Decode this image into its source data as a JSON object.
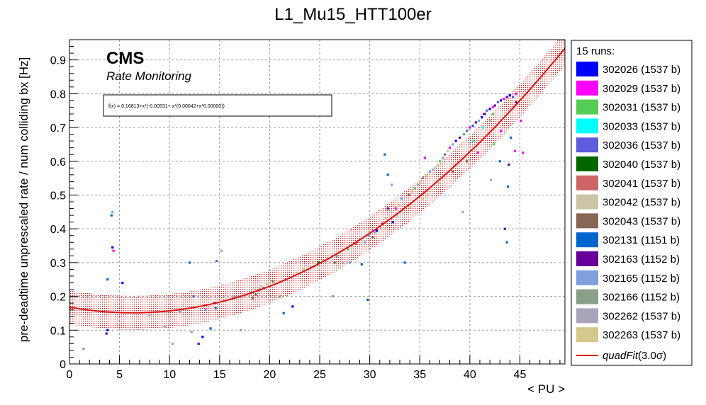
{
  "chart_data": {
    "type": "scatter",
    "title": "L1_Mu15_HTT100er",
    "xlabel": "< PU >",
    "ylabel": "pre-deadtime unprescaled rate / num colliding bx [Hz]",
    "xlim": [
      0,
      49.5
    ],
    "ylim": [
      0,
      0.96
    ],
    "x_ticks": [
      0,
      5,
      10,
      15,
      20,
      25,
      30,
      35,
      40,
      45
    ],
    "y_ticks": [
      0,
      0.1,
      0.2,
      0.3,
      0.4,
      0.5,
      0.6,
      0.7,
      0.8,
      0.9
    ],
    "grid": true,
    "experiment": "CMS",
    "subtitle": "Rate Monitoring",
    "fit_formula": "f(x) = 0.16813+x*(-0.00531+ x*(0.00042+x*0.00000))",
    "fit": {
      "name": "quadFit",
      "label_suffix": "(3.0σ)",
      "color": "#dd1111",
      "band_color": "#dd1111",
      "coefficients": [
        0.16813,
        -0.00531,
        0.00042,
        0.0
      ],
      "band_halfwidth": 0.05
    },
    "legend": {
      "header": "15 runs:",
      "position": "right",
      "entries": [
        {
          "label": "302026 (1537 b)",
          "color": "#0000ff"
        },
        {
          "label": "302029 (1537 b)",
          "color": "#ff00ff"
        },
        {
          "label": "302031 (1537 b)",
          "color": "#55cc55"
        },
        {
          "label": "302033 (1537 b)",
          "color": "#00ffff"
        },
        {
          "label": "302036 (1537 b)",
          "color": "#5c5cdc"
        },
        {
          "label": "302040 (1537 b)",
          "color": "#006600"
        },
        {
          "label": "302041 (1537 b)",
          "color": "#cc6666"
        },
        {
          "label": "302042 (1537 b)",
          "color": "#ccc4a6"
        },
        {
          "label": "302043 (1537 b)",
          "color": "#886655"
        },
        {
          "label": "302131 (1151 b)",
          "color": "#0066cc"
        },
        {
          "label": "302163 (1152 b)",
          "color": "#660099"
        },
        {
          "label": "302165 (1152 b)",
          "color": "#7f9fdd"
        },
        {
          "label": "302166 (1152 b)",
          "color": "#88a088"
        },
        {
          "label": "302262 (1537 b)",
          "color": "#aaa4bb"
        },
        {
          "label": "302263 (1537 b)",
          "color": "#d4c88a"
        }
      ],
      "fit_entry": "quadFit(3.0σ)"
    },
    "points": [
      {
        "x": 1.4,
        "y": 0.045,
        "series": 11
      },
      {
        "x": 3.7,
        "y": 0.09,
        "series": 10
      },
      {
        "x": 3.8,
        "y": 0.1,
        "series": 0
      },
      {
        "x": 3.8,
        "y": 0.25,
        "series": 9
      },
      {
        "x": 4.2,
        "y": 0.44,
        "series": 9
      },
      {
        "x": 4.3,
        "y": 0.45,
        "series": 11
      },
      {
        "x": 4.3,
        "y": 0.345,
        "series": 0
      },
      {
        "x": 4.4,
        "y": 0.335,
        "series": 1
      },
      {
        "x": 5.3,
        "y": 0.24,
        "series": 0
      },
      {
        "x": 8.0,
        "y": 0.145,
        "series": 13
      },
      {
        "x": 9.5,
        "y": 0.11,
        "series": 13
      },
      {
        "x": 10.3,
        "y": 0.06,
        "series": 13
      },
      {
        "x": 11.0,
        "y": 0.155,
        "series": 11
      },
      {
        "x": 12.0,
        "y": 0.3,
        "series": 9
      },
      {
        "x": 12.2,
        "y": 0.095,
        "series": 11
      },
      {
        "x": 12.4,
        "y": 0.2,
        "series": 4
      },
      {
        "x": 12.9,
        "y": 0.06,
        "series": 10
      },
      {
        "x": 13.3,
        "y": 0.08,
        "series": 0
      },
      {
        "x": 13.6,
        "y": 0.16,
        "series": 11
      },
      {
        "x": 14.1,
        "y": 0.105,
        "series": 9
      },
      {
        "x": 14.5,
        "y": 0.18,
        "series": 0
      },
      {
        "x": 14.6,
        "y": 0.165,
        "series": 9
      },
      {
        "x": 14.7,
        "y": 0.305,
        "series": 4
      },
      {
        "x": 15.2,
        "y": 0.335,
        "series": 13
      },
      {
        "x": 16.5,
        "y": 0.2,
        "series": 11
      },
      {
        "x": 17.1,
        "y": 0.1,
        "series": 12
      },
      {
        "x": 18.1,
        "y": 0.21,
        "series": 8
      },
      {
        "x": 18.3,
        "y": 0.195,
        "series": 8
      },
      {
        "x": 18.4,
        "y": 0.22,
        "series": 7
      },
      {
        "x": 18.6,
        "y": 0.205,
        "series": 8
      },
      {
        "x": 18.8,
        "y": 0.215,
        "series": 14
      },
      {
        "x": 19.0,
        "y": 0.22,
        "series": 8
      },
      {
        "x": 19.2,
        "y": 0.23,
        "series": 7
      },
      {
        "x": 19.4,
        "y": 0.225,
        "series": 8
      },
      {
        "x": 19.7,
        "y": 0.235,
        "series": 14
      },
      {
        "x": 20.0,
        "y": 0.24,
        "series": 7
      },
      {
        "x": 20.3,
        "y": 0.245,
        "series": 8
      },
      {
        "x": 21.0,
        "y": 0.2,
        "series": 12
      },
      {
        "x": 21.4,
        "y": 0.15,
        "series": 9
      },
      {
        "x": 22.3,
        "y": 0.17,
        "series": 0
      },
      {
        "x": 22.8,
        "y": 0.27,
        "series": 7
      },
      {
        "x": 23.4,
        "y": 0.28,
        "series": 14
      },
      {
        "x": 24.1,
        "y": 0.285,
        "series": 12
      },
      {
        "x": 24.4,
        "y": 0.29,
        "series": 2
      },
      {
        "x": 24.9,
        "y": 0.3,
        "series": 5
      },
      {
        "x": 25.3,
        "y": 0.305,
        "series": 14
      },
      {
        "x": 25.8,
        "y": 0.31,
        "series": 7
      },
      {
        "x": 26.3,
        "y": 0.2,
        "series": 12
      },
      {
        "x": 26.5,
        "y": 0.3,
        "series": 8
      },
      {
        "x": 27.0,
        "y": 0.33,
        "series": 14
      },
      {
        "x": 27.8,
        "y": 0.34,
        "series": 2
      },
      {
        "x": 28.3,
        "y": 0.35,
        "series": 14
      },
      {
        "x": 28.6,
        "y": 0.355,
        "series": 8
      },
      {
        "x": 29.2,
        "y": 0.295,
        "series": 9
      },
      {
        "x": 29.8,
        "y": 0.19,
        "series": 9
      },
      {
        "x": 29.9,
        "y": 0.38,
        "series": 11
      },
      {
        "x": 30.3,
        "y": 0.375,
        "series": 8
      },
      {
        "x": 30.5,
        "y": 0.39,
        "series": 11
      },
      {
        "x": 30.7,
        "y": 0.395,
        "series": 0
      },
      {
        "x": 31.0,
        "y": 0.405,
        "series": 14
      },
      {
        "x": 31.3,
        "y": 0.415,
        "series": 10
      },
      {
        "x": 31.6,
        "y": 0.43,
        "series": 7
      },
      {
        "x": 32.2,
        "y": 0.53,
        "series": 11
      },
      {
        "x": 31.8,
        "y": 0.56,
        "series": 9
      },
      {
        "x": 31.5,
        "y": 0.62,
        "series": 9
      },
      {
        "x": 32.6,
        "y": 0.46,
        "series": 1
      },
      {
        "x": 33.0,
        "y": 0.47,
        "series": 14
      },
      {
        "x": 33.2,
        "y": 0.49,
        "series": 11
      },
      {
        "x": 33.5,
        "y": 0.3,
        "series": 9
      },
      {
        "x": 33.9,
        "y": 0.5,
        "series": 8
      },
      {
        "x": 34.2,
        "y": 0.51,
        "series": 14
      },
      {
        "x": 34.5,
        "y": 0.52,
        "series": 2
      },
      {
        "x": 34.8,
        "y": 0.53,
        "series": 13
      },
      {
        "x": 35.0,
        "y": 0.54,
        "series": 7
      },
      {
        "x": 35.3,
        "y": 0.55,
        "series": 12
      },
      {
        "x": 35.5,
        "y": 0.61,
        "series": 1
      },
      {
        "x": 35.6,
        "y": 0.56,
        "series": 14
      },
      {
        "x": 36.0,
        "y": 0.57,
        "series": 11
      },
      {
        "x": 36.3,
        "y": 0.575,
        "series": 13
      },
      {
        "x": 36.5,
        "y": 0.58,
        "series": 7
      },
      {
        "x": 36.8,
        "y": 0.59,
        "series": 14
      },
      {
        "x": 37.0,
        "y": 0.6,
        "series": 2
      },
      {
        "x": 37.3,
        "y": 0.61,
        "series": 11
      },
      {
        "x": 37.5,
        "y": 0.62,
        "series": 8
      },
      {
        "x": 37.8,
        "y": 0.63,
        "series": 14
      },
      {
        "x": 38.0,
        "y": 0.64,
        "series": 1
      },
      {
        "x": 38.3,
        "y": 0.65,
        "series": 11
      },
      {
        "x": 38.6,
        "y": 0.66,
        "series": 0
      },
      {
        "x": 39.0,
        "y": 0.67,
        "series": 10
      },
      {
        "x": 39.3,
        "y": 0.45,
        "series": 13
      },
      {
        "x": 39.4,
        "y": 0.68,
        "series": 2
      },
      {
        "x": 39.7,
        "y": 0.69,
        "series": 4
      },
      {
        "x": 40.0,
        "y": 0.7,
        "series": 1
      },
      {
        "x": 40.3,
        "y": 0.705,
        "series": 9
      },
      {
        "x": 40.6,
        "y": 0.715,
        "series": 10
      },
      {
        "x": 40.9,
        "y": 0.72,
        "series": 11
      },
      {
        "x": 41.2,
        "y": 0.73,
        "series": 0
      },
      {
        "x": 41.4,
        "y": 0.74,
        "series": 1
      },
      {
        "x": 41.7,
        "y": 0.75,
        "series": 4
      },
      {
        "x": 42.0,
        "y": 0.755,
        "series": 0
      },
      {
        "x": 42.3,
        "y": 0.76,
        "series": 1
      },
      {
        "x": 42.5,
        "y": 0.765,
        "series": 10
      },
      {
        "x": 42.8,
        "y": 0.775,
        "series": 4
      },
      {
        "x": 43.1,
        "y": 0.78,
        "series": 0
      },
      {
        "x": 43.4,
        "y": 0.785,
        "series": 1
      },
      {
        "x": 43.7,
        "y": 0.79,
        "series": 10
      },
      {
        "x": 44.0,
        "y": 0.795,
        "series": 0
      },
      {
        "x": 44.3,
        "y": 0.79,
        "series": 4
      },
      {
        "x": 44.6,
        "y": 0.8,
        "series": 1
      },
      {
        "x": 40.3,
        "y": 0.66,
        "series": 3
      },
      {
        "x": 41.3,
        "y": 0.7,
        "series": 3
      },
      {
        "x": 42.3,
        "y": 0.74,
        "series": 2
      },
      {
        "x": 42.0,
        "y": 0.72,
        "series": 13
      },
      {
        "x": 43.0,
        "y": 0.6,
        "series": 9
      },
      {
        "x": 43.5,
        "y": 0.4,
        "series": 10
      },
      {
        "x": 43.7,
        "y": 0.36,
        "series": 9
      },
      {
        "x": 43.8,
        "y": 0.525,
        "series": 9
      },
      {
        "x": 43.9,
        "y": 0.59,
        "series": 10
      },
      {
        "x": 44.1,
        "y": 0.67,
        "series": 9
      },
      {
        "x": 44.5,
        "y": 0.63,
        "series": 1
      },
      {
        "x": 42.1,
        "y": 0.545,
        "series": 13
      },
      {
        "x": 45.3,
        "y": 0.625,
        "series": 1
      },
      {
        "x": 45.1,
        "y": 0.72,
        "series": 1
      },
      {
        "x": 43.1,
        "y": 0.69,
        "series": 1
      },
      {
        "x": 40.8,
        "y": 0.625,
        "series": 1
      },
      {
        "x": 42.4,
        "y": 0.65,
        "series": 2
      },
      {
        "x": 44.6,
        "y": 0.775,
        "series": 10
      },
      {
        "x": 41.5,
        "y": 0.74,
        "series": 10
      },
      {
        "x": 39.7,
        "y": 0.6,
        "series": 8
      },
      {
        "x": 38.3,
        "y": 0.57,
        "series": 8
      },
      {
        "x": 36.9,
        "y": 0.535,
        "series": 7
      },
      {
        "x": 35.3,
        "y": 0.49,
        "series": 14
      },
      {
        "x": 34.0,
        "y": 0.465,
        "series": 14
      },
      {
        "x": 32.7,
        "y": 0.44,
        "series": 14
      },
      {
        "x": 32.3,
        "y": 0.42,
        "series": 0
      },
      {
        "x": 31.8,
        "y": 0.46,
        "series": 10
      },
      {
        "x": 29.5,
        "y": 0.36,
        "series": 11
      },
      {
        "x": 28.0,
        "y": 0.3,
        "series": 11
      },
      {
        "x": 26.7,
        "y": 0.32,
        "series": 12
      },
      {
        "x": 27.3,
        "y": 0.3,
        "series": 13
      }
    ]
  }
}
